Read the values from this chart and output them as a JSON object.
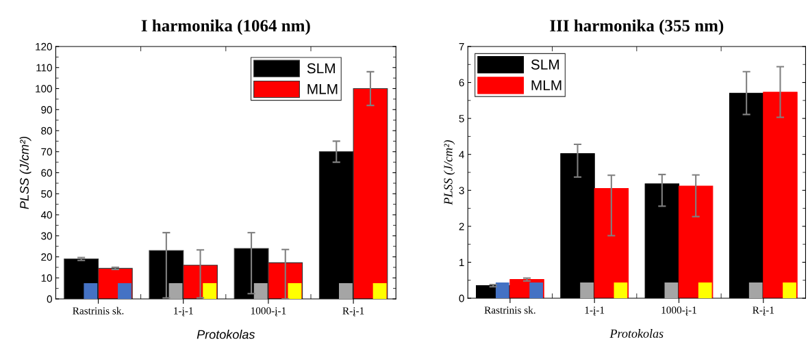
{
  "chart_data": [
    {
      "type": "bar",
      "title": "I harmonika (1064 nm)",
      "xlabel": "Protokolas",
      "ylabel": "PLSS (J/cm²)",
      "categories": [
        "Rastrinis sk.",
        "1-į-1",
        "1000-į-1",
        "R-į-1"
      ],
      "series": [
        {
          "name": "SLM",
          "color": "#000000",
          "values": [
            19,
            23,
            24,
            70
          ],
          "errors": [
            [
              18.3,
              19.7
            ],
            [
              0.5,
              31.5
            ],
            [
              2.5,
              31.5
            ],
            [
              65,
              75
            ]
          ]
        },
        {
          "name": "MLM",
          "color": "#ff0000",
          "values": [
            14.5,
            16,
            17.2,
            100
          ],
          "errors": [
            [
              14,
              15
            ],
            [
              0.5,
              23.3
            ],
            [
              0,
              23.5
            ],
            [
              92,
              108
            ]
          ]
        }
      ],
      "ylim": [
        0,
        120
      ],
      "yticks": [
        0,
        10,
        20,
        30,
        40,
        50,
        60,
        70,
        80,
        90,
        100,
        110,
        120
      ],
      "legend": "top right",
      "grid": false
    },
    {
      "type": "bar",
      "title": "III harmonika (355 nm)",
      "xlabel": "Protokolas",
      "ylabel": "PLSS (J/cm²)",
      "categories": [
        "Rastrinis sk.",
        "1-į-1",
        "1000-į-1",
        "R-į-1"
      ],
      "series": [
        {
          "name": "SLM",
          "color": "#000000",
          "values": [
            0.35,
            4.02,
            3.18,
            5.7
          ],
          "errors": [
            [
              0.32,
              0.38
            ],
            [
              3.37,
              4.28
            ],
            [
              2.56,
              3.44
            ],
            [
              5.11,
              6.3
            ]
          ]
        },
        {
          "name": "MLM",
          "color": "#ff0000",
          "values": [
            0.52,
            3.05,
            3.12,
            5.73
          ],
          "errors": [
            [
              0.48,
              0.56
            ],
            [
              1.74,
              3.42
            ],
            [
              2.27,
              3.43
            ],
            [
              5.03,
              6.44
            ]
          ]
        }
      ],
      "ylim": [
        0,
        7
      ],
      "yticks": [
        0,
        1,
        2,
        3,
        4,
        5,
        6,
        7
      ],
      "legend": "top left",
      "grid": false
    }
  ]
}
